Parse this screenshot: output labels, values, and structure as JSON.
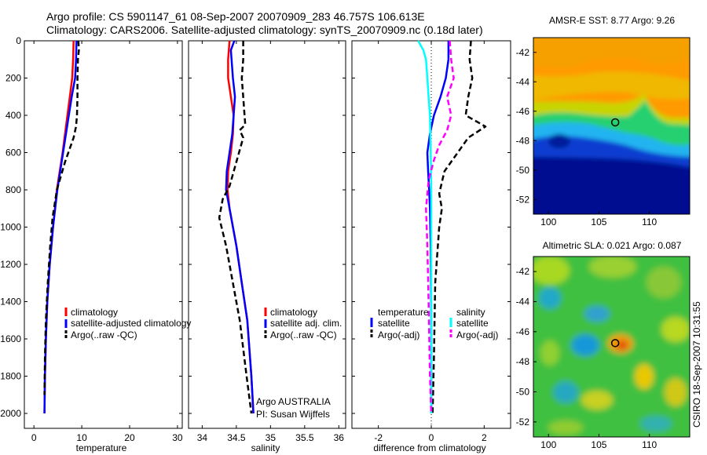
{
  "header": {
    "line1": "Argo profile: CS 5901147_61 08-Sep-2007 20070909_283 46.757S 106.613E",
    "line2": "Climatology: CARS2006. Satellite-adjusted climatology: synTS_20070909.nc (0.18d later)"
  },
  "colors": {
    "climatology": "#ff0000",
    "satellite": "#0000ff",
    "argo": "#000000",
    "satellite_salinity": "#00ffff",
    "argo_salinity_diff": "#ff00ff"
  },
  "chart_data": [
    {
      "type": "line",
      "panel": "temperature",
      "xlabel": "temperature",
      "ylabel": "",
      "xlim": [
        -2,
        31
      ],
      "ylim": [
        2080,
        0
      ],
      "xticks": [
        0,
        10,
        20,
        30
      ],
      "yticks": [
        0,
        200,
        400,
        600,
        800,
        1000,
        1200,
        1400,
        1600,
        1800,
        2000
      ],
      "legend": {
        "placement": "bottom-right",
        "entries": [
          "climatology",
          "satellite-adjusted climatology",
          "Argo(..raw -QC)"
        ]
      },
      "series": [
        {
          "name": "climatology",
          "color": "#ff0000",
          "dash": false,
          "x": [
            8.3,
            8.2,
            8.0,
            7.5,
            7.0,
            6.0,
            4.8,
            4.0,
            3.3,
            2.8,
            2.5,
            2.3,
            2.2
          ],
          "y": [
            0,
            100,
            200,
            300,
            400,
            600,
            800,
            1000,
            1200,
            1400,
            1600,
            1800,
            2000
          ]
        },
        {
          "name": "satellite-adjusted climatology",
          "color": "#0000ff",
          "dash": false,
          "x": [
            8.9,
            8.8,
            8.6,
            7.9,
            7.3,
            6.1,
            4.9,
            4.0,
            3.3,
            2.8,
            2.5,
            2.3,
            2.2
          ],
          "y": [
            0,
            100,
            200,
            300,
            400,
            600,
            800,
            1000,
            1200,
            1400,
            1600,
            1800,
            2000
          ]
        },
        {
          "name": "Argo(..raw -QC)",
          "color": "#000000",
          "dash": true,
          "x": [
            9.3,
            9.4,
            9.2,
            9.1,
            9.1,
            9.0,
            8.8,
            8.3,
            6.5,
            4.8,
            3.9,
            3.4,
            2.9,
            2.5,
            2.3,
            2.2
          ],
          "y": [
            0,
            50,
            100,
            200,
            300,
            400,
            460,
            520,
            650,
            800,
            950,
            1100,
            1300,
            1500,
            1700,
            1900
          ]
        }
      ]
    },
    {
      "type": "line",
      "panel": "salinity",
      "xlabel": "salinity",
      "ylabel": "",
      "xlim": [
        33.8,
        36.1
      ],
      "ylim": [
        2080,
        0
      ],
      "xticks": [
        34,
        34.5,
        35,
        35.5,
        36
      ],
      "legend": {
        "placement": "bottom-right",
        "entries": [
          "climatology",
          "satellite adj. clim.",
          "Argo(..raw -QC)"
        ]
      },
      "annotation": [
        "Argo AUSTRALIA",
        "PI: Susan Wijffels"
      ],
      "series": [
        {
          "name": "climatology",
          "color": "#ff0000",
          "dash": false,
          "x": [
            34.4,
            34.38,
            34.38,
            34.42,
            34.46,
            34.45,
            34.42,
            34.38,
            34.37,
            34.4,
            34.5,
            34.58,
            34.66,
            34.72,
            34.75
          ],
          "y": [
            0,
            100,
            200,
            300,
            400,
            500,
            600,
            700,
            800,
            900,
            1100,
            1300,
            1500,
            1800,
            2000
          ]
        },
        {
          "name": "satellite adj. clim.",
          "color": "#0000ff",
          "dash": false,
          "x": [
            34.47,
            34.42,
            34.45,
            34.48,
            34.46,
            34.44,
            34.4,
            34.36,
            34.35,
            34.4,
            34.5,
            34.58,
            34.66,
            34.72,
            34.75
          ],
          "y": [
            0,
            50,
            200,
            300,
            400,
            500,
            600,
            700,
            800,
            900,
            1100,
            1300,
            1500,
            1800,
            2000
          ]
        },
        {
          "name": "Argo(..raw -QC)",
          "color": "#000000",
          "dash": true,
          "x": [
            34.6,
            34.6,
            34.58,
            34.6,
            34.62,
            34.63,
            34.55,
            34.6,
            34.5,
            34.4,
            34.3,
            34.25,
            34.35,
            34.45,
            34.55,
            34.65,
            34.72
          ],
          "y": [
            0,
            100,
            200,
            300,
            400,
            450,
            480,
            520,
            650,
            780,
            850,
            950,
            1100,
            1300,
            1500,
            1800,
            2000
          ]
        }
      ]
    },
    {
      "type": "line",
      "panel": "difference",
      "xlabel": "difference from climatology",
      "ylabel": "",
      "xlim": [
        -3,
        3
      ],
      "ylim": [
        2080,
        0
      ],
      "xticks": [
        -2,
        0,
        2
      ],
      "legend": {
        "placement": "bottom",
        "columns": [
          {
            "title": "temperature",
            "entries": [
              "satellite",
              "Argo(-adj)"
            ]
          },
          {
            "title": "salinity",
            "entries": [
              "satellite",
              "Argo(-adj)"
            ]
          }
        ]
      },
      "series": [
        {
          "name": "temperature satellite",
          "color": "#0000ff",
          "dash": false,
          "x": [
            0.65,
            0.65,
            0.55,
            0.35,
            0.1,
            -0.05,
            -0.15,
            -0.12,
            -0.08,
            -0.05,
            -0.02,
            0,
            0
          ],
          "y": [
            0,
            100,
            200,
            300,
            400,
            500,
            600,
            700,
            800,
            900,
            1100,
            1500,
            2000
          ]
        },
        {
          "name": "temperature Argo(-adj)",
          "color": "#000000",
          "dash": true,
          "x": [
            1.5,
            1.45,
            1.55,
            1.4,
            1.3,
            2.05,
            1.4,
            1.0,
            0.5,
            0.3,
            0.4,
            0.3,
            0.15,
            0.1,
            0.05
          ],
          "y": [
            0,
            100,
            200,
            300,
            400,
            460,
            520,
            600,
            700,
            820,
            900,
            1000,
            1300,
            1700,
            2000
          ]
        },
        {
          "name": "salinity satellite",
          "color": "#00ffff",
          "dash": false,
          "x": [
            -0.5,
            -0.3,
            -0.2,
            -0.15,
            -0.1,
            -0.05,
            -0.02,
            0,
            0,
            0,
            0
          ],
          "y": [
            0,
            50,
            100,
            200,
            300,
            400,
            600,
            800,
            1100,
            1500,
            2000
          ]
        },
        {
          "name": "salinity Argo(-adj)",
          "color": "#ff00ff",
          "dash": true,
          "x": [
            0.7,
            0.75,
            0.85,
            0.6,
            0.75,
            0.6,
            0.3,
            0.1,
            -0.1,
            -0.2,
            -0.15,
            -0.1,
            -0.05,
            0
          ],
          "y": [
            0,
            100,
            200,
            300,
            400,
            480,
            560,
            640,
            750,
            900,
            1100,
            1400,
            1800,
            2000
          ]
        }
      ]
    },
    {
      "type": "heatmap",
      "panel": "sst-map",
      "title": "AMSR-E SST: 8.77 Argo: 9.26",
      "xlim": [
        98.5,
        114
      ],
      "ylim": [
        -53,
        -41
      ],
      "xticks": [
        100,
        105,
        110
      ],
      "yticks": [
        -42,
        -44,
        -46,
        -48,
        -50,
        -52
      ],
      "marker": {
        "lon": 106.613,
        "lat": -46.757
      }
    },
    {
      "type": "heatmap",
      "panel": "sla-map",
      "title": "Altimetric SLA: 0.021 Argo: 0.087",
      "xlim": [
        98.5,
        114
      ],
      "ylim": [
        -53,
        -41
      ],
      "xticks": [
        100,
        105,
        110
      ],
      "yticks": [
        -42,
        -44,
        -46,
        -48,
        -50,
        -52
      ],
      "marker": {
        "lon": 106.613,
        "lat": -46.757
      }
    }
  ],
  "stamp": "CSIRO 18-Sep-2007 10:31:55"
}
